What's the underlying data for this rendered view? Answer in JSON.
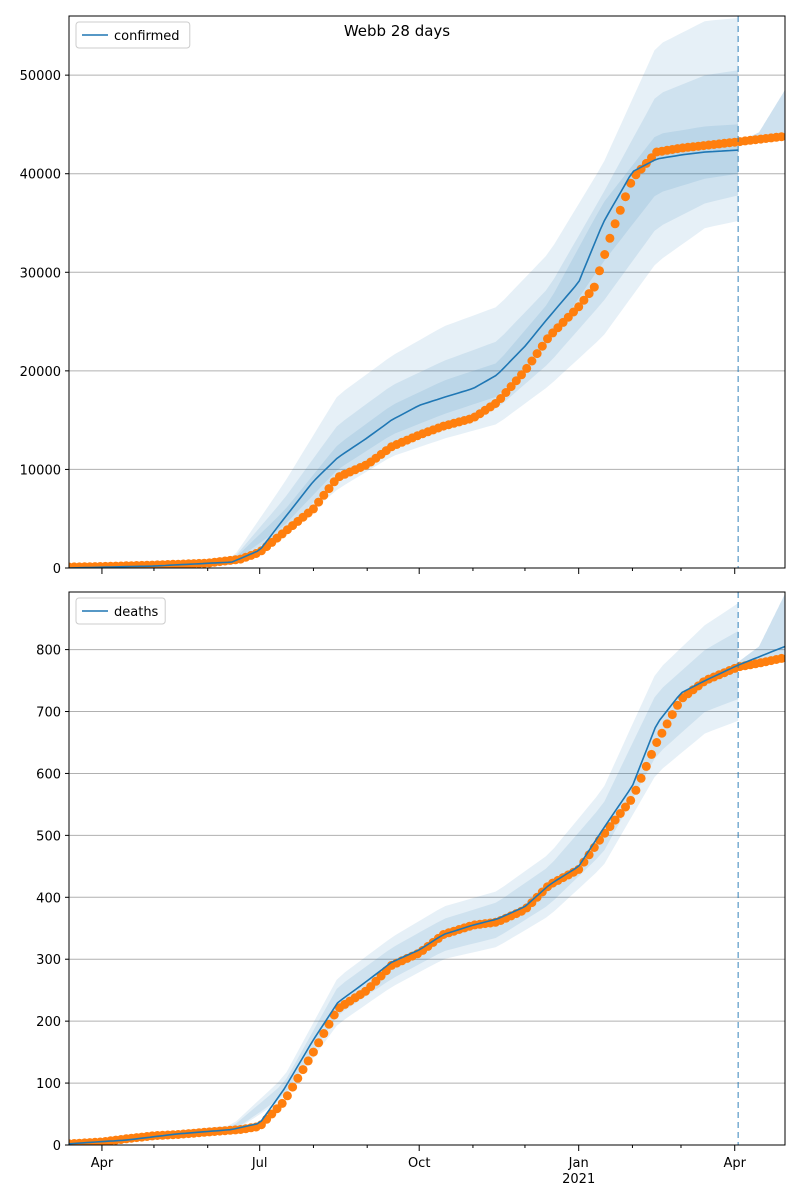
{
  "title": "Webb 28 days",
  "colors": {
    "model": "#1f77b4",
    "observed": "#ff7f0e",
    "grid": "#b0b0b0",
    "band": "#1f77b4"
  },
  "x_axis": {
    "tick_labels": [
      {
        "date": "2020-04-01",
        "label": "Apr"
      },
      {
        "date": "2020-07-01",
        "label": "Jul"
      },
      {
        "date": "2020-10-01",
        "label": "Oct"
      },
      {
        "date": "2021-01-01",
        "label": "Jan",
        "sublabel": "2021"
      },
      {
        "date": "2021-04-01",
        "label": "Apr"
      }
    ]
  },
  "chart_data": [
    {
      "type": "line",
      "legend": [
        "confirmed"
      ],
      "legend_position": "top-left",
      "grid": "horizontal",
      "xlim": [
        "2020-03-13",
        "2021-04-30"
      ],
      "ylim": [
        0,
        56000
      ],
      "yticks": [
        0,
        10000,
        20000,
        30000,
        40000,
        50000
      ],
      "forecast_start": "2021-04-03",
      "series": [
        {
          "name": "confirmed",
          "kind": "model-median",
          "points": [
            [
              "2020-03-13",
              0
            ],
            [
              "2020-05-01",
              200
            ],
            [
              "2020-06-15",
              600
            ],
            [
              "2020-07-01",
              1800
            ],
            [
              "2020-07-15",
              5000
            ],
            [
              "2020-08-01",
              8800
            ],
            [
              "2020-08-15",
              11200
            ],
            [
              "2020-09-01",
              13200
            ],
            [
              "2020-09-15",
              15000
            ],
            [
              "2020-10-01",
              16500
            ],
            [
              "2020-10-15",
              17300
            ],
            [
              "2020-11-01",
              18200
            ],
            [
              "2020-11-15",
              19600
            ],
            [
              "2020-12-01",
              22500
            ],
            [
              "2020-12-15",
              25500
            ],
            [
              "2021-01-01",
              29000
            ],
            [
              "2021-01-15",
              35000
            ],
            [
              "2021-02-01",
              40200
            ],
            [
              "2021-02-15",
              41500
            ],
            [
              "2021-03-01",
              41900
            ],
            [
              "2021-03-15",
              42200
            ],
            [
              "2021-04-03",
              42400
            ]
          ]
        },
        {
          "name": "",
          "kind": "observed",
          "points": [
            [
              "2020-03-13",
              100
            ],
            [
              "2020-04-01",
              150
            ],
            [
              "2020-05-01",
              300
            ],
            [
              "2020-06-01",
              500
            ],
            [
              "2020-06-20",
              900
            ],
            [
              "2020-07-01",
              1600
            ],
            [
              "2020-07-15",
              3600
            ],
            [
              "2020-08-01",
              6000
            ],
            [
              "2020-08-15",
              9200
            ],
            [
              "2020-09-01",
              10500
            ],
            [
              "2020-09-15",
              12300
            ],
            [
              "2020-10-01",
              13500
            ],
            [
              "2020-10-15",
              14400
            ],
            [
              "2020-11-01",
              15200
            ],
            [
              "2020-11-15",
              16800
            ],
            [
              "2020-12-01",
              20000
            ],
            [
              "2020-12-15",
              23500
            ],
            [
              "2021-01-01",
              26500
            ],
            [
              "2021-01-10",
              28500
            ],
            [
              "2021-01-20",
              34000
            ],
            [
              "2021-02-01",
              39500
            ],
            [
              "2021-02-15",
              42200
            ],
            [
              "2021-03-01",
              42600
            ],
            [
              "2021-04-01",
              43200
            ],
            [
              "2021-04-30",
              43800
            ]
          ]
        }
      ],
      "bands": [
        {
          "lower": [
            [
              "2020-03-13",
              0
            ],
            [
              "2020-06-15",
              300
            ],
            [
              "2020-07-15",
              3200
            ],
            [
              "2020-08-15",
              8000
            ],
            [
              "2020-09-15",
              11300
            ],
            [
              "2020-10-15",
              13100
            ],
            [
              "2020-11-15",
              14600
            ],
            [
              "2020-12-15",
              18500
            ],
            [
              "2021-01-15",
              23500
            ],
            [
              "2021-02-15",
              31000
            ],
            [
              "2021-03-15",
              34500
            ],
            [
              "2021-04-03",
              35200
            ]
          ],
          "upper": [
            [
              "2020-03-13",
              0
            ],
            [
              "2020-06-15",
              900
            ],
            [
              "2020-07-15",
              8600
            ],
            [
              "2020-08-15",
              17500
            ],
            [
              "2020-09-15",
              21500
            ],
            [
              "2020-10-15",
              24500
            ],
            [
              "2020-11-15",
              26500
            ],
            [
              "2020-12-15",
              32000
            ],
            [
              "2021-01-15",
              41000
            ],
            [
              "2021-02-15",
              53000
            ],
            [
              "2021-03-15",
              55500
            ],
            [
              "2021-04-03",
              55800
            ]
          ]
        },
        {
          "lower": [
            [
              "2020-03-13",
              0
            ],
            [
              "2020-06-15",
              400
            ],
            [
              "2020-07-15",
              3800
            ],
            [
              "2020-08-15",
              9000
            ],
            [
              "2020-09-15",
              12500
            ],
            [
              "2020-10-15",
              14500
            ],
            [
              "2020-11-15",
              16200
            ],
            [
              "2020-12-15",
              20800
            ],
            [
              "2021-01-15",
              27000
            ],
            [
              "2021-02-15",
              34500
            ],
            [
              "2021-03-15",
              37000
            ],
            [
              "2021-04-03",
              37800
            ]
          ],
          "upper": [
            [
              "2020-03-13",
              0
            ],
            [
              "2020-06-15",
              800
            ],
            [
              "2020-07-15",
              7000
            ],
            [
              "2020-08-15",
              14500
            ],
            [
              "2020-09-15",
              18500
            ],
            [
              "2020-10-15",
              21000
            ],
            [
              "2020-11-15",
              23000
            ],
            [
              "2020-12-15",
              28500
            ],
            [
              "2021-01-15",
              38000
            ],
            [
              "2021-02-15",
              48000
            ],
            [
              "2021-03-15",
              50000
            ],
            [
              "2021-04-03",
              50500
            ]
          ]
        },
        {
          "lower": [
            [
              "2020-03-13",
              0
            ],
            [
              "2020-06-15",
              500
            ],
            [
              "2020-07-15",
              4300
            ],
            [
              "2020-08-15",
              10000
            ],
            [
              "2020-09-15",
              13500
            ],
            [
              "2020-10-15",
              15600
            ],
            [
              "2020-11-15",
              17400
            ],
            [
              "2020-12-15",
              23000
            ],
            [
              "2021-01-15",
              31000
            ],
            [
              "2021-02-15",
              38000
            ],
            [
              "2021-03-15",
              39500
            ],
            [
              "2021-04-03",
              40000
            ]
          ],
          "upper": [
            [
              "2020-03-13",
              0
            ],
            [
              "2020-06-15",
              700
            ],
            [
              "2020-07-15",
              5800
            ],
            [
              "2020-08-15",
              12500
            ],
            [
              "2020-09-15",
              16500
            ],
            [
              "2020-10-15",
              19000
            ],
            [
              "2020-11-15",
              20800
            ],
            [
              "2020-12-15",
              27000
            ],
            [
              "2021-01-15",
              37000
            ],
            [
              "2021-02-15",
              44000
            ],
            [
              "2021-03-15",
              44800
            ],
            [
              "2021-04-03",
              45000
            ]
          ]
        }
      ],
      "forecast_band": {
        "lower": [
          [
            "2021-04-03",
            43200
          ],
          [
            "2021-04-30",
            43800
          ]
        ],
        "upper": [
          [
            "2021-04-03",
            43200
          ],
          [
            "2021-04-15",
            44200
          ],
          [
            "2021-04-30",
            48500
          ]
        ]
      }
    },
    {
      "type": "line",
      "legend": [
        "deaths"
      ],
      "legend_position": "top-left",
      "grid": "horizontal",
      "xlim": [
        "2020-03-13",
        "2021-04-30"
      ],
      "ylim": [
        0,
        893
      ],
      "yticks": [
        0,
        100,
        200,
        300,
        400,
        500,
        600,
        700,
        800
      ],
      "forecast_start": "2021-04-03",
      "series": [
        {
          "name": "deaths",
          "kind": "model-median",
          "points": [
            [
              "2020-03-13",
              2
            ],
            [
              "2020-04-15",
              8
            ],
            [
              "2020-05-15",
              18
            ],
            [
              "2020-06-15",
              25
            ],
            [
              "2020-07-01",
              35
            ],
            [
              "2020-07-15",
              90
            ],
            [
              "2020-08-01",
              170
            ],
            [
              "2020-08-15",
              230
            ],
            [
              "2020-09-01",
              265
            ],
            [
              "2020-09-15",
              295
            ],
            [
              "2020-10-01",
              315
            ],
            [
              "2020-10-15",
              340
            ],
            [
              "2020-11-01",
              355
            ],
            [
              "2020-11-15",
              365
            ],
            [
              "2020-12-01",
              385
            ],
            [
              "2020-12-15",
              420
            ],
            [
              "2021-01-01",
              450
            ],
            [
              "2021-01-15",
              510
            ],
            [
              "2021-02-01",
              580
            ],
            [
              "2021-02-15",
              680
            ],
            [
              "2021-03-01",
              730
            ],
            [
              "2021-03-15",
              750
            ],
            [
              "2021-04-03",
              775
            ],
            [
              "2021-04-30",
              805
            ]
          ]
        },
        {
          "name": "",
          "kind": "observed",
          "points": [
            [
              "2020-03-13",
              2
            ],
            [
              "2020-04-01",
              5
            ],
            [
              "2020-04-15",
              10
            ],
            [
              "2020-05-01",
              15
            ],
            [
              "2020-05-15",
              17
            ],
            [
              "2020-06-01",
              21
            ],
            [
              "2020-06-20",
              25
            ],
            [
              "2020-07-01",
              30
            ],
            [
              "2020-07-15",
              70
            ],
            [
              "2020-08-01",
              150
            ],
            [
              "2020-08-15",
              220
            ],
            [
              "2020-09-01",
              250
            ],
            [
              "2020-09-15",
              290
            ],
            [
              "2020-10-01",
              310
            ],
            [
              "2020-10-15",
              340
            ],
            [
              "2020-11-01",
              355
            ],
            [
              "2020-11-15",
              360
            ],
            [
              "2020-12-01",
              380
            ],
            [
              "2020-12-15",
              420
            ],
            [
              "2021-01-01",
              445
            ],
            [
              "2021-01-15",
              500
            ],
            [
              "2021-02-01",
              560
            ],
            [
              "2021-02-15",
              650
            ],
            [
              "2021-03-01",
              720
            ],
            [
              "2021-03-15",
              750
            ],
            [
              "2021-04-03",
              772
            ],
            [
              "2021-04-15",
              778
            ],
            [
              "2021-04-30",
              787
            ]
          ]
        }
      ],
      "bands": [
        {
          "lower": [
            [
              "2020-03-13",
              0
            ],
            [
              "2020-06-15",
              20
            ],
            [
              "2020-07-15",
              75
            ],
            [
              "2020-08-15",
              195
            ],
            [
              "2020-09-15",
              255
            ],
            [
              "2020-10-15",
              300
            ],
            [
              "2020-11-15",
              320
            ],
            [
              "2020-12-15",
              370
            ],
            [
              "2021-01-15",
              450
            ],
            [
              "2021-02-15",
              600
            ],
            [
              "2021-03-15",
              665
            ],
            [
              "2021-04-03",
              685
            ]
          ],
          "upper": [
            [
              "2020-03-13",
              5
            ],
            [
              "2020-06-15",
              32
            ],
            [
              "2020-07-15",
              110
            ],
            [
              "2020-08-15",
              270
            ],
            [
              "2020-09-15",
              335
            ],
            [
              "2020-10-15",
              385
            ],
            [
              "2020-11-15",
              410
            ],
            [
              "2020-12-15",
              470
            ],
            [
              "2021-01-15",
              575
            ],
            [
              "2021-02-15",
              765
            ],
            [
              "2021-03-15",
              840
            ],
            [
              "2021-04-03",
              875
            ]
          ]
        },
        {
          "lower": [
            [
              "2020-03-13",
              0
            ],
            [
              "2020-06-15",
              22
            ],
            [
              "2020-07-15",
              80
            ],
            [
              "2020-08-15",
              210
            ],
            [
              "2020-09-15",
              268
            ],
            [
              "2020-10-15",
              313
            ],
            [
              "2020-11-15",
              335
            ],
            [
              "2020-12-15",
              388
            ],
            [
              "2021-01-15",
              472
            ],
            [
              "2021-02-15",
              630
            ],
            [
              "2021-03-15",
              700
            ],
            [
              "2021-04-03",
              720
            ]
          ],
          "upper": [
            [
              "2020-03-13",
              4
            ],
            [
              "2020-06-15",
              29
            ],
            [
              "2020-07-15",
              100
            ],
            [
              "2020-08-15",
              255
            ],
            [
              "2020-09-15",
              318
            ],
            [
              "2020-10-15",
              365
            ],
            [
              "2020-11-15",
              392
            ],
            [
              "2020-12-15",
              450
            ],
            [
              "2021-01-15",
              550
            ],
            [
              "2021-02-15",
              730
            ],
            [
              "2021-03-15",
              800
            ],
            [
              "2021-04-03",
              830
            ]
          ]
        }
      ],
      "forecast_band": {
        "lower": [
          [
            "2021-04-03",
            770
          ],
          [
            "2021-04-30",
            785
          ]
        ],
        "upper": [
          [
            "2021-04-03",
            780
          ],
          [
            "2021-04-15",
            805
          ],
          [
            "2021-04-30",
            890
          ]
        ]
      }
    }
  ]
}
